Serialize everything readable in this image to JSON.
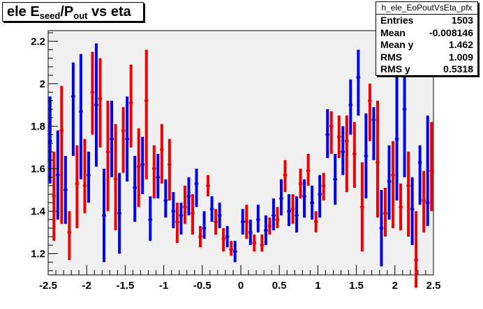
{
  "title": {
    "main": "ele E",
    "sub1": "seed",
    "mid": "/P",
    "sub2": "out",
    "tail": " vs eta"
  },
  "stats": {
    "name": "h_ele_EoPoutVsEta_pfx",
    "rows": [
      {
        "label": "Entries",
        "value": "1503"
      },
      {
        "label": "Mean",
        "value": "-0.008146"
      },
      {
        "label": "Mean y",
        "value": "1.462"
      },
      {
        "label": "RMS",
        "value": "1.009"
      },
      {
        "label": "RMS y",
        "value": "0.5318"
      }
    ]
  },
  "colors": {
    "frame_bg": "#f0f0f0",
    "series_a": "#0000ee",
    "series_b": "#ee0000",
    "axis": "#000000"
  },
  "chart_data": {
    "type": "scatter",
    "xlim": [
      -2.5,
      2.5
    ],
    "ylim": [
      1.1,
      2.25
    ],
    "xticks": [
      -2.5,
      -2,
      -1.5,
      -1,
      -0.5,
      0,
      0.5,
      1,
      1.5,
      2,
      2.5
    ],
    "xtick_labels": [
      "-2.5",
      "-2",
      "-1.5",
      "-1",
      "-0.5",
      "0",
      "0.5",
      "1",
      "1.5",
      "2",
      "2.5"
    ],
    "yticks": [
      1.2,
      1.4,
      1.6,
      1.8,
      2.0,
      2.2
    ],
    "ytick_labels": [
      "1.2",
      "1.4",
      "1.6",
      "1.8",
      "2",
      "2.2"
    ],
    "bin_half_width": 0.025,
    "grid": false,
    "series": [
      {
        "color": "#0000ee",
        "points": [
          {
            "x": -2.475,
            "y": 1.73,
            "lo": 1.53,
            "hi": 1.94
          },
          {
            "x": -2.375,
            "y": 1.57,
            "lo": 1.36,
            "hi": 1.78
          },
          {
            "x": -2.275,
            "y": 1.5,
            "lo": 1.34,
            "hi": 1.66
          },
          {
            "x": -2.175,
            "y": 1.94,
            "lo": 1.66,
            "hi": 2.1
          },
          {
            "x": -2.075,
            "y": 1.87,
            "lo": 1.55,
            "hi": 2.14
          },
          {
            "x": -1.975,
            "y": 1.57,
            "lo": 1.44,
            "hi": 1.68
          },
          {
            "x": -1.875,
            "y": 1.9,
            "lo": 1.61,
            "hi": 2.19
          },
          {
            "x": -1.775,
            "y": 1.38,
            "lo": 1.16,
            "hi": 1.6
          },
          {
            "x": -1.675,
            "y": 1.74,
            "lo": 1.56,
            "hi": 1.92
          },
          {
            "x": -1.575,
            "y": 1.39,
            "lo": 1.2,
            "hi": 1.58
          },
          {
            "x": -1.475,
            "y": 1.74,
            "lo": 1.54,
            "hi": 1.94
          },
          {
            "x": -1.375,
            "y": 1.51,
            "lo": 1.35,
            "hi": 1.66
          },
          {
            "x": -1.275,
            "y": 1.62,
            "lo": 1.48,
            "hi": 1.75
          },
          {
            "x": -1.175,
            "y": 1.36,
            "lo": 1.26,
            "hi": 1.47
          },
          {
            "x": -1.075,
            "y": 1.56,
            "lo": 1.46,
            "hi": 1.67
          },
          {
            "x": -0.975,
            "y": 1.45,
            "lo": 1.37,
            "hi": 1.55
          },
          {
            "x": -0.875,
            "y": 1.4,
            "lo": 1.32,
            "hi": 1.49
          },
          {
            "x": -0.775,
            "y": 1.38,
            "lo": 1.29,
            "hi": 1.44
          },
          {
            "x": -0.675,
            "y": 1.47,
            "lo": 1.38,
            "hi": 1.56
          },
          {
            "x": -0.575,
            "y": 1.53,
            "lo": 1.42,
            "hi": 1.6
          },
          {
            "x": -0.475,
            "y": 1.32,
            "lo": 1.27,
            "hi": 1.4
          },
          {
            "x": -0.375,
            "y": 1.41,
            "lo": 1.35,
            "hi": 1.47
          },
          {
            "x": -0.275,
            "y": 1.38,
            "lo": 1.32,
            "hi": 1.44
          },
          {
            "x": -0.175,
            "y": 1.28,
            "lo": 1.23,
            "hi": 1.33
          },
          {
            "x": -0.075,
            "y": 1.21,
            "lo": 1.16,
            "hi": 1.26
          },
          {
            "x": 0.025,
            "y": 1.35,
            "lo": 1.29,
            "hi": 1.41
          },
          {
            "x": 0.125,
            "y": 1.3,
            "lo": 1.24,
            "hi": 1.36
          },
          {
            "x": 0.225,
            "y": 1.36,
            "lo": 1.3,
            "hi": 1.43
          },
          {
            "x": 0.325,
            "y": 1.31,
            "lo": 1.24,
            "hi": 1.38
          },
          {
            "x": 0.425,
            "y": 1.38,
            "lo": 1.31,
            "hi": 1.46
          },
          {
            "x": 0.525,
            "y": 1.46,
            "lo": 1.38,
            "hi": 1.55
          },
          {
            "x": 0.625,
            "y": 1.4,
            "lo": 1.33,
            "hi": 1.48
          },
          {
            "x": 0.725,
            "y": 1.38,
            "lo": 1.3,
            "hi": 1.47
          },
          {
            "x": 0.825,
            "y": 1.47,
            "lo": 1.37,
            "hi": 1.55
          },
          {
            "x": 0.925,
            "y": 1.44,
            "lo": 1.36,
            "hi": 1.52
          },
          {
            "x": 1.025,
            "y": 1.48,
            "lo": 1.37,
            "hi": 1.57
          },
          {
            "x": 1.125,
            "y": 1.76,
            "lo": 1.65,
            "hi": 1.88
          },
          {
            "x": 1.225,
            "y": 1.55,
            "lo": 1.43,
            "hi": 1.67
          },
          {
            "x": 1.325,
            "y": 1.68,
            "lo": 1.57,
            "hi": 1.8
          },
          {
            "x": 1.425,
            "y": 1.9,
            "lo": 1.76,
            "hi": 2.02
          },
          {
            "x": 1.525,
            "y": 2.03,
            "lo": 1.85,
            "hi": 2.16
          },
          {
            "x": 1.625,
            "y": 1.66,
            "lo": 1.46,
            "hi": 1.86
          },
          {
            "x": 1.725,
            "y": 1.83,
            "lo": 1.64,
            "hi": 1.89
          },
          {
            "x": 1.825,
            "y": 1.32,
            "lo": 1.14,
            "hi": 1.5
          },
          {
            "x": 1.925,
            "y": 1.54,
            "lo": 1.36,
            "hi": 1.71
          },
          {
            "x": 2.025,
            "y": 1.74,
            "lo": 1.45,
            "hi": 2.04
          },
          {
            "x": 2.125,
            "y": 1.88,
            "lo": 1.56,
            "hi": 2.07
          },
          {
            "x": 2.225,
            "y": 1.41,
            "lo": 1.24,
            "hi": 1.56
          },
          {
            "x": 2.325,
            "y": 1.63,
            "lo": 1.43,
            "hi": 1.71
          },
          {
            "x": 2.425,
            "y": 1.44,
            "lo": 1.33,
            "hi": 1.85
          }
        ]
      },
      {
        "color": "#ee0000",
        "points": [
          {
            "x": -2.425,
            "y": 1.47,
            "lo": 1.26,
            "hi": 1.68
          },
          {
            "x": -2.325,
            "y": 1.78,
            "lo": 1.34,
            "hi": 1.99
          },
          {
            "x": -2.225,
            "y": 1.3,
            "lo": 1.17,
            "hi": 1.4
          },
          {
            "x": -2.125,
            "y": 1.53,
            "lo": 1.32,
            "hi": 1.71
          },
          {
            "x": -2.025,
            "y": 1.52,
            "lo": 1.39,
            "hi": 1.74
          },
          {
            "x": -1.925,
            "y": 1.96,
            "lo": 1.76,
            "hi": 2.15
          },
          {
            "x": -1.825,
            "y": 1.93,
            "lo": 1.7,
            "hi": 2.12
          },
          {
            "x": -1.725,
            "y": 1.68,
            "lo": 1.4,
            "hi": 1.92
          },
          {
            "x": -1.625,
            "y": 1.55,
            "lo": 1.31,
            "hi": 1.81
          },
          {
            "x": -1.525,
            "y": 1.78,
            "lo": 1.58,
            "hi": 1.89
          },
          {
            "x": -1.425,
            "y": 1.91,
            "lo": 1.7,
            "hi": 2.09
          },
          {
            "x": -1.325,
            "y": 1.61,
            "lo": 1.42,
            "hi": 1.79
          },
          {
            "x": -1.225,
            "y": 1.92,
            "lo": 1.55,
            "hi": 2.16
          },
          {
            "x": -1.125,
            "y": 1.6,
            "lo": 1.46,
            "hi": 1.71
          },
          {
            "x": -1.025,
            "y": 1.69,
            "lo": 1.53,
            "hi": 1.81
          },
          {
            "x": -0.925,
            "y": 1.62,
            "lo": 1.45,
            "hi": 1.74
          },
          {
            "x": -0.825,
            "y": 1.35,
            "lo": 1.25,
            "hi": 1.44
          },
          {
            "x": -0.725,
            "y": 1.42,
            "lo": 1.34,
            "hi": 1.52
          },
          {
            "x": -0.625,
            "y": 1.39,
            "lo": 1.29,
            "hi": 1.48
          },
          {
            "x": -0.525,
            "y": 1.28,
            "lo": 1.23,
            "hi": 1.33
          },
          {
            "x": -0.425,
            "y": 1.52,
            "lo": 1.47,
            "hi": 1.57
          },
          {
            "x": -0.325,
            "y": 1.35,
            "lo": 1.29,
            "hi": 1.41
          },
          {
            "x": -0.225,
            "y": 1.27,
            "lo": 1.21,
            "hi": 1.32
          },
          {
            "x": -0.125,
            "y": 1.22,
            "lo": 1.19,
            "hi": 1.26
          },
          {
            "x": 0.075,
            "y": 1.35,
            "lo": 1.27,
            "hi": 1.43
          },
          {
            "x": 0.175,
            "y": 1.25,
            "lo": 1.21,
            "hi": 1.29
          },
          {
            "x": 0.275,
            "y": 1.24,
            "lo": 1.21,
            "hi": 1.29
          },
          {
            "x": 0.375,
            "y": 1.33,
            "lo": 1.29,
            "hi": 1.37
          },
          {
            "x": 0.475,
            "y": 1.36,
            "lo": 1.32,
            "hi": 1.42
          },
          {
            "x": 0.575,
            "y": 1.57,
            "lo": 1.49,
            "hi": 1.64
          },
          {
            "x": 0.675,
            "y": 1.41,
            "lo": 1.34,
            "hi": 1.48
          },
          {
            "x": 0.775,
            "y": 1.53,
            "lo": 1.46,
            "hi": 1.6
          },
          {
            "x": 0.875,
            "y": 1.59,
            "lo": 1.52,
            "hi": 1.67
          },
          {
            "x": 0.975,
            "y": 1.35,
            "lo": 1.3,
            "hi": 1.4
          },
          {
            "x": 1.075,
            "y": 1.52,
            "lo": 1.45,
            "hi": 1.58
          },
          {
            "x": 1.175,
            "y": 1.8,
            "lo": 1.67,
            "hi": 1.87
          },
          {
            "x": 1.275,
            "y": 1.75,
            "lo": 1.65,
            "hi": 1.85
          },
          {
            "x": 1.375,
            "y": 1.73,
            "lo": 1.49,
            "hi": 1.85
          },
          {
            "x": 1.475,
            "y": 1.67,
            "lo": 1.51,
            "hi": 1.82
          },
          {
            "x": 1.575,
            "y": 1.42,
            "lo": 1.21,
            "hi": 1.63
          },
          {
            "x": 1.675,
            "y": 1.92,
            "lo": 1.73,
            "hi": 2.0
          },
          {
            "x": 1.775,
            "y": 1.63,
            "lo": 1.37,
            "hi": 1.92
          },
          {
            "x": 1.875,
            "y": 1.39,
            "lo": 1.28,
            "hi": 1.51
          },
          {
            "x": 1.975,
            "y": 1.57,
            "lo": 1.32,
            "hi": 1.73
          },
          {
            "x": 2.075,
            "y": 1.42,
            "lo": 1.31,
            "hi": 1.53
          },
          {
            "x": 2.175,
            "y": 1.52,
            "lo": 1.28,
            "hi": 1.68
          },
          {
            "x": 2.275,
            "y": 1.17,
            "lo": 1.04,
            "hi": 1.4
          },
          {
            "x": 2.375,
            "y": 1.45,
            "lo": 1.3,
            "hi": 1.59
          },
          {
            "x": 2.475,
            "y": 1.59,
            "lo": 1.4,
            "hi": 1.82
          }
        ]
      }
    ]
  }
}
